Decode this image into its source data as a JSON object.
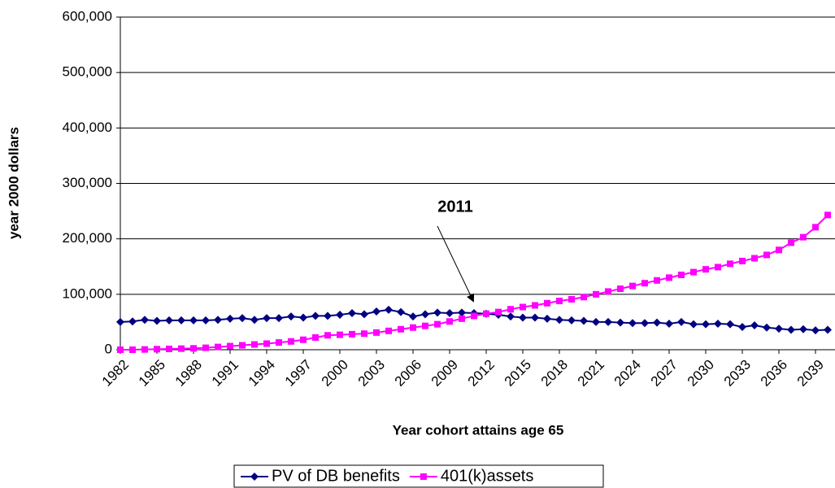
{
  "chart_data": {
    "type": "line",
    "y_label": "year 2000 dollars",
    "x_label": "Year cohort attains age 65",
    "annotation": "2011",
    "x": [
      1982,
      1983,
      1984,
      1985,
      1986,
      1987,
      1988,
      1989,
      1990,
      1991,
      1992,
      1993,
      1994,
      1995,
      1996,
      1997,
      1998,
      1999,
      2000,
      2001,
      2002,
      2003,
      2004,
      2005,
      2006,
      2007,
      2008,
      2009,
      2010,
      2011,
      2012,
      2013,
      2014,
      2015,
      2016,
      2017,
      2018,
      2019,
      2020,
      2021,
      2022,
      2023,
      2024,
      2025,
      2026,
      2027,
      2028,
      2029,
      2030,
      2031,
      2032,
      2033,
      2034,
      2035,
      2036,
      2037,
      2038,
      2039,
      2040
    ],
    "xlim": [
      1982,
      2040
    ],
    "xticks": [
      1982,
      1985,
      1988,
      1991,
      1994,
      1997,
      2000,
      2003,
      2006,
      2009,
      2012,
      2015,
      2018,
      2021,
      2024,
      2027,
      2030,
      2033,
      2036,
      2039
    ],
    "ylim": [
      0,
      600000
    ],
    "yticks": [
      0,
      {
        "value": 100000,
        "label": "100,000"
      },
      {
        "value": 200000,
        "label": "200,000"
      },
      {
        "value": 300000,
        "label": "300,000"
      },
      {
        "value": 400000,
        "label": "400,000"
      },
      {
        "value": 500000,
        "label": "500,000"
      },
      {
        "value": 600000,
        "label": "600,000"
      }
    ],
    "grid": true,
    "legend": "bottom",
    "series": [
      {
        "name": "PV of DB benefits",
        "color": "#000080",
        "marker": "diamond",
        "values": [
          50000,
          51000,
          54000,
          52000,
          53000,
          53000,
          53000,
          53000,
          54000,
          56000,
          57000,
          54000,
          57000,
          57000,
          60000,
          58000,
          61000,
          61000,
          63000,
          66000,
          64000,
          69000,
          72000,
          68000,
          60000,
          64000,
          67000,
          66000,
          67000,
          66000,
          65000,
          63000,
          60000,
          58000,
          58000,
          56000,
          54000,
          53000,
          52000,
          50000,
          50000,
          49000,
          48000,
          48000,
          49000,
          47000,
          50000,
          46000,
          46000,
          47000,
          46000,
          41000,
          44000,
          40000,
          38000,
          36000,
          37000,
          35000,
          36000
        ]
      },
      {
        "name": "401(k)assets",
        "color": "#ff00ff",
        "marker": "square",
        "values": [
          0,
          0,
          500,
          1000,
          1500,
          2000,
          2500,
          3500,
          5000,
          6500,
          8000,
          9500,
          11000,
          13000,
          15000,
          18000,
          22000,
          26000,
          27000,
          28000,
          29000,
          31000,
          34000,
          37000,
          40000,
          43000,
          46000,
          51000,
          56000,
          61000,
          65000,
          68000,
          73000,
          77000,
          80000,
          84000,
          88000,
          91000,
          95000,
          100000,
          105000,
          110000,
          115000,
          120000,
          125000,
          130000,
          135000,
          140000,
          145000,
          149000,
          155000,
          160000,
          165000,
          171000,
          180000,
          193000,
          203000,
          221000,
          243000
        ]
      }
    ]
  }
}
